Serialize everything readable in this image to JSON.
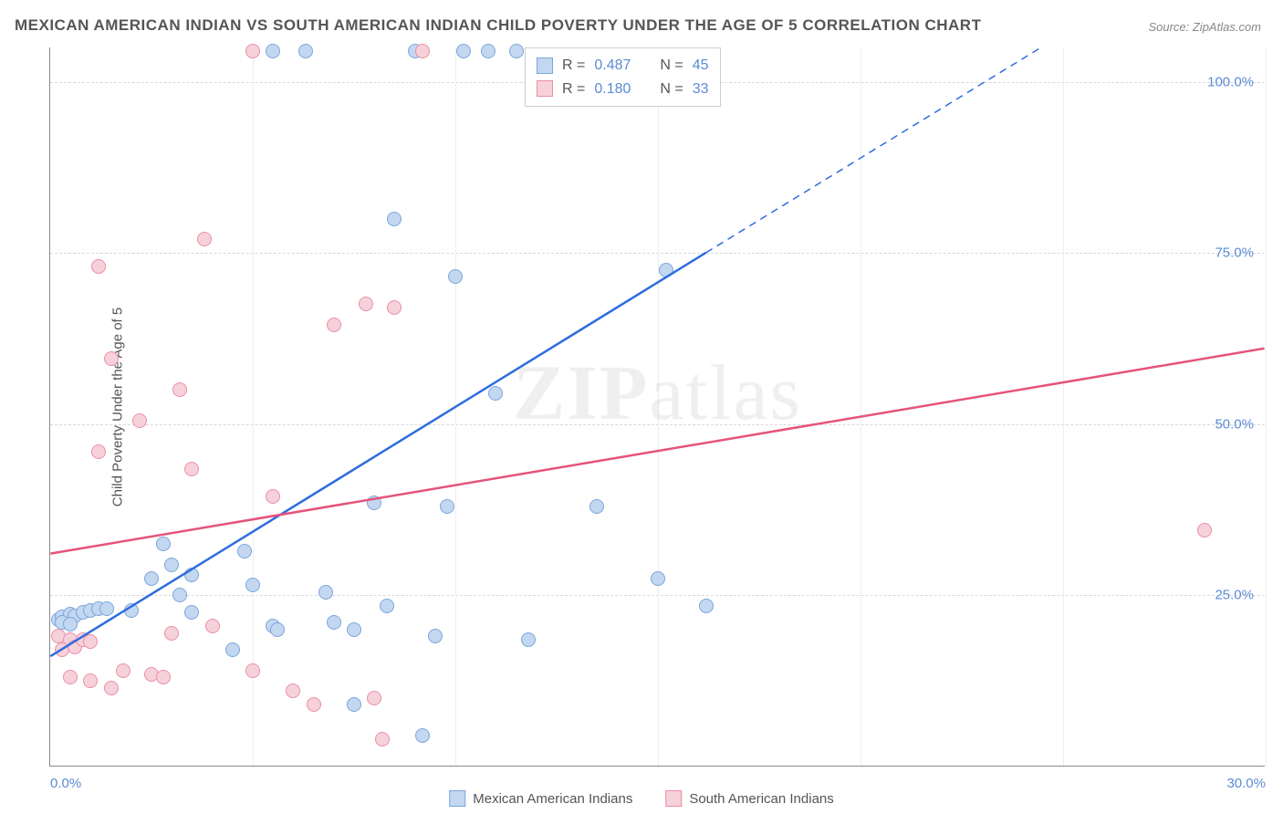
{
  "title": "MEXICAN AMERICAN INDIAN VS SOUTH AMERICAN INDIAN CHILD POVERTY UNDER THE AGE OF 5 CORRELATION CHART",
  "source": "Source: ZipAtlas.com",
  "y_axis_label": "Child Poverty Under the Age of 5",
  "watermark": "ZIPatlas",
  "chart": {
    "type": "scatter",
    "xlim": [
      0,
      30
    ],
    "ylim": [
      0,
      105
    ],
    "x_ticks": [
      0,
      5,
      10,
      15,
      20,
      25,
      30
    ],
    "x_tick_labels": [
      "0.0%",
      "",
      "",
      "",
      "",
      "",
      "30.0%"
    ],
    "y_ticks": [
      25,
      50,
      75,
      100
    ],
    "y_tick_labels": [
      "25.0%",
      "50.0%",
      "75.0%",
      "100.0%"
    ],
    "background_color": "#ffffff",
    "grid_color_h": "#d8d8d8",
    "grid_color_v": "#eeeeee",
    "marker_radius": 8,
    "marker_stroke_width": 1.5,
    "series": [
      {
        "name": "Mexican American Indians",
        "color_fill": "#c3d7f0",
        "color_stroke": "#7ba6db",
        "trend_color": "#2d6cdf",
        "trend_width": 2.5,
        "trend_p1": [
          0,
          16
        ],
        "trend_p2": [
          16.2,
          75
        ],
        "trend_dash_p2": [
          30,
          125
        ],
        "R": "0.487",
        "N": "45",
        "points": [
          [
            0.2,
            21.5
          ],
          [
            0.3,
            21.8
          ],
          [
            0.5,
            22.2
          ],
          [
            0.6,
            22.0
          ],
          [
            0.8,
            22.5
          ],
          [
            1.0,
            22.8
          ],
          [
            1.2,
            23.0
          ],
          [
            1.4,
            23.0
          ],
          [
            0.3,
            21.0
          ],
          [
            0.5,
            20.8
          ],
          [
            2.0,
            22.8
          ],
          [
            2.5,
            27.5
          ],
          [
            2.8,
            32.5
          ],
          [
            3.0,
            29.5
          ],
          [
            3.5,
            28.0
          ],
          [
            3.2,
            25.0
          ],
          [
            3.5,
            22.5
          ],
          [
            4.5,
            17.0
          ],
          [
            4.8,
            31.5
          ],
          [
            5.0,
            26.5
          ],
          [
            5.5,
            20.5
          ],
          [
            5.6,
            20.0
          ],
          [
            7.0,
            21.0
          ],
          [
            6.8,
            25.5
          ],
          [
            7.5,
            20.0
          ],
          [
            7.5,
            9.0
          ],
          [
            8.0,
            38.5
          ],
          [
            8.3,
            23.5
          ],
          [
            8.5,
            80.0
          ],
          [
            9.2,
            4.5
          ],
          [
            9.5,
            19.0
          ],
          [
            9.8,
            38.0
          ],
          [
            10.0,
            71.5
          ],
          [
            10.2,
            104.5
          ],
          [
            10.8,
            104.5
          ],
          [
            11.0,
            54.5
          ],
          [
            11.5,
            104.5
          ],
          [
            11.8,
            18.5
          ],
          [
            13.5,
            38.0
          ],
          [
            15.0,
            27.5
          ],
          [
            15.2,
            72.5
          ],
          [
            16.2,
            23.5
          ],
          [
            5.5,
            104.5
          ],
          [
            6.3,
            104.5
          ],
          [
            9.0,
            104.5
          ]
        ]
      },
      {
        "name": "South American Indians",
        "color_fill": "#f6d1da",
        "color_stroke": "#e98fa8",
        "trend_color": "#e6537a",
        "trend_width": 2.5,
        "trend_p1": [
          0,
          31
        ],
        "trend_p2": [
          30,
          61
        ],
        "R": "0.180",
        "N": "33",
        "points": [
          [
            0.2,
            19.0
          ],
          [
            0.5,
            18.5
          ],
          [
            0.3,
            17.0
          ],
          [
            0.6,
            17.5
          ],
          [
            0.8,
            18.5
          ],
          [
            1.0,
            18.2
          ],
          [
            1.0,
            12.5
          ],
          [
            0.5,
            13.0
          ],
          [
            1.5,
            11.5
          ],
          [
            1.8,
            14.0
          ],
          [
            1.2,
            46.0
          ],
          [
            1.2,
            73.0
          ],
          [
            1.5,
            59.5
          ],
          [
            2.2,
            50.5
          ],
          [
            2.5,
            13.5
          ],
          [
            2.8,
            13.0
          ],
          [
            3.0,
            19.5
          ],
          [
            3.2,
            55.0
          ],
          [
            3.5,
            43.5
          ],
          [
            3.8,
            77.0
          ],
          [
            4.0,
            20.5
          ],
          [
            5.0,
            14.0
          ],
          [
            5.0,
            104.5
          ],
          [
            5.5,
            39.5
          ],
          [
            6.0,
            11.0
          ],
          [
            6.5,
            9.0
          ],
          [
            7.0,
            64.5
          ],
          [
            7.8,
            67.5
          ],
          [
            8.0,
            10.0
          ],
          [
            8.2,
            4.0
          ],
          [
            8.5,
            67.0
          ],
          [
            9.2,
            104.5
          ],
          [
            28.5,
            34.5
          ]
        ]
      }
    ]
  },
  "bottom_legend": [
    {
      "label": "Mexican American Indians",
      "fill": "#c3d7f0",
      "stroke": "#7ba6db"
    },
    {
      "label": "South American Indians",
      "fill": "#f6d1da",
      "stroke": "#e98fa8"
    }
  ]
}
